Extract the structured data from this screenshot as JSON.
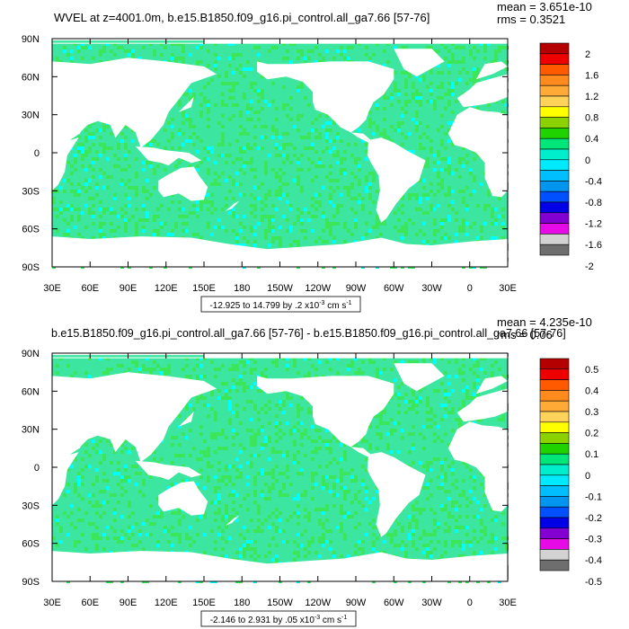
{
  "chart_data": [
    {
      "type": "heatmap",
      "title": "WVEL at z=4001.0m, b.e15.B1850.f09_g16.pi_control.all_ga7.66 [57-76]",
      "stats": {
        "mean": "mean = 3.651e-10",
        "rms": "rms = 0.3521"
      },
      "x_ticks": [
        "30E",
        "60E",
        "90E",
        "120E",
        "150E",
        "180",
        "150W",
        "120W",
        "90W",
        "60W",
        "30W",
        "0",
        "30E"
      ],
      "y_ticks": [
        "90N",
        "60N",
        "30N",
        "0",
        "30S",
        "60S",
        "90S"
      ],
      "colorbar_labels": [
        "2",
        "1.6",
        "1.2",
        "0.8",
        "0.4",
        "0",
        "-0.4",
        "-0.8",
        "-1.2",
        "-1.6",
        "-2"
      ],
      "colorbar_colors": [
        "#b40000",
        "#ef0000",
        "#ff5a00",
        "#ff8a1e",
        "#ffaa37",
        "#ffd25a",
        "#ffff00",
        "#8cd200",
        "#20d200",
        "#00e678",
        "#00eecc",
        "#00eaff",
        "#00beff",
        "#0096f0",
        "#0050ff",
        "#0000e6",
        "#8200d2",
        "#e60ae6",
        "#d2d2d2",
        "#6e6e6e"
      ],
      "range_label": "-12.925 to 14.799 by .2 x10",
      "range_exp": "-3",
      "range_units": " cm s",
      "range_units_exp": "-1"
    },
    {
      "type": "heatmap",
      "title": "b.e15.B1850.f09_g16.pi_control.all_ga7.66 [57-76] - b.e15.B1850.f09_g16.pi_control.all_ga7.66 [57-76]",
      "stats": {
        "mean": "mean = 4.235e-10",
        "rms": "rms = 0.06"
      },
      "x_ticks": [
        "30E",
        "60E",
        "90E",
        "120E",
        "150E",
        "180",
        "150W",
        "120W",
        "90W",
        "60W",
        "30W",
        "0",
        "30E"
      ],
      "y_ticks": [
        "90N",
        "60N",
        "30N",
        "0",
        "30S",
        "60S",
        "90S"
      ],
      "colorbar_labels": [
        "0.5",
        "0.4",
        "0.3",
        "0.2",
        "0.1",
        "0",
        "-0.1",
        "-0.2",
        "-0.3",
        "-0.4",
        "-0.5"
      ],
      "colorbar_colors": [
        "#b40000",
        "#ef0000",
        "#ff5a00",
        "#ff8a1e",
        "#ffaa37",
        "#ffd25a",
        "#ffff00",
        "#8cd200",
        "#20d200",
        "#00e678",
        "#00eecc",
        "#00eaff",
        "#00beff",
        "#0096f0",
        "#0050ff",
        "#0000e6",
        "#8200d2",
        "#e60ae6",
        "#d2d2d2",
        "#6e6e6e"
      ],
      "range_label": "-2.146 to 2.931 by .05 x10",
      "range_exp": "-3",
      "range_units": " cm s",
      "range_units_exp": "-1"
    }
  ],
  "colors": {
    "ocean_base": "#3de6a0",
    "ocean_alt": "#3ce65a",
    "ocean_light": "#00ffff",
    "land": "#ffffff"
  }
}
